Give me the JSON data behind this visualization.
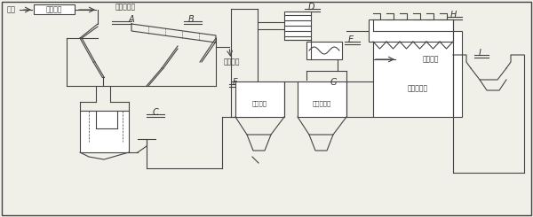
{
  "bg_color": "#f0f0e8",
  "line_color": "#444444",
  "text_color": "#333333",
  "labels": {
    "yuanmei": "原烟",
    "zhongjie": "重介分选",
    "zhongjue_yanshi": "中煤、矸石",
    "A": "A",
    "B": "B",
    "C": "C",
    "D": "D",
    "E": "E",
    "F": "F",
    "G": "G",
    "H": "H",
    "I": "I",
    "fushangwuliao": "筛上物料",
    "jinitanshui": "煤泥水筱",
    "hege": "合格介质桶",
    "gangshichanpin": "矸石产品",
    "cucuomeifenxuan": "粗煤泥分选"
  },
  "fig_width": 6.0,
  "fig_height": 2.45,
  "dpi": 100
}
